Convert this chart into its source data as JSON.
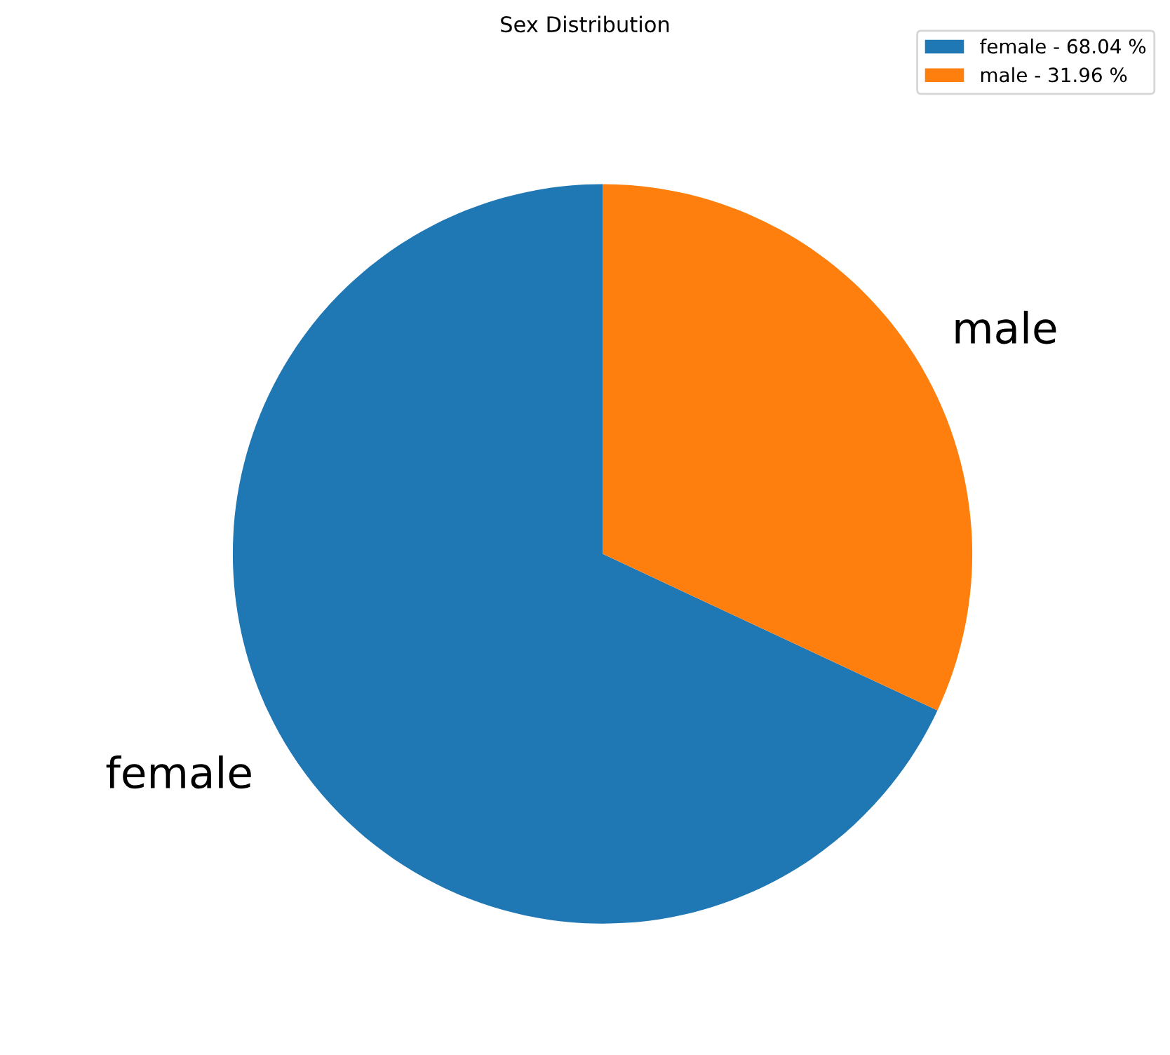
{
  "chart_data": {
    "type": "pie",
    "title": "Sex Distribution",
    "categories": [
      "female",
      "male"
    ],
    "values": [
      68.04,
      31.96
    ],
    "colors": [
      "#1f77b4",
      "#ff7f0e"
    ],
    "annotations": [
      "female - 68.04 %",
      "male - 31.96 %"
    ]
  }
}
